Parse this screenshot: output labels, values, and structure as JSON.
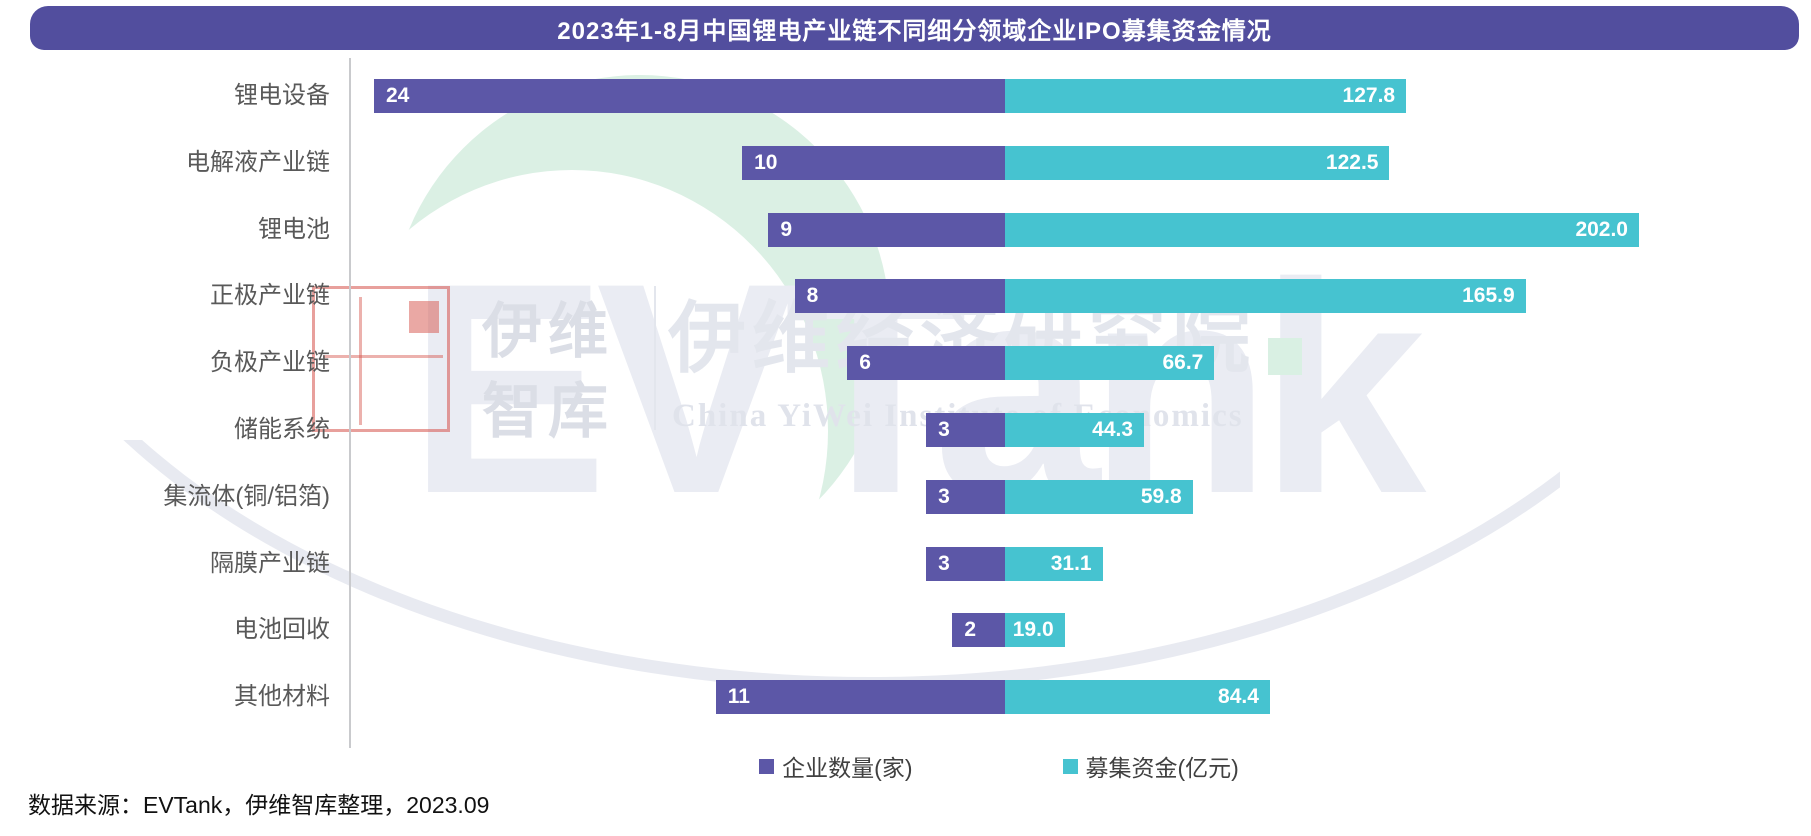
{
  "title": "2023年1-8月中国锂电产业链不同细分领域企业IPO募集资金情况",
  "chart_data": {
    "type": "bar",
    "orientation": "horizontal-diverging-stacked",
    "title": "2023年1-8月中国锂电产业链不同细分领域企业IPO募集资金情况",
    "categories": [
      "锂电设备",
      "电解液产业链",
      "锂电池",
      "正极产业链",
      "负极产业链",
      "储能系统",
      "集流体(铜/铝箔)",
      "隔膜产业链",
      "电池回收",
      "其他材料"
    ],
    "series": [
      {
        "name": "企业数量(家)",
        "color": "#5C57A7",
        "axis_max": 24,
        "values": [
          24,
          10,
          9,
          8,
          6,
          3,
          3,
          3,
          2,
          11
        ]
      },
      {
        "name": "募集资金(亿元)",
        "color": "#46C3D0",
        "axis_max": 202.0,
        "values": [
          127.8,
          122.5,
          202.0,
          165.9,
          66.7,
          44.3,
          59.8,
          31.1,
          19.0,
          84.4
        ]
      }
    ],
    "value_label_format": {
      "companies": "integer",
      "funds": "one_decimal"
    },
    "legend_position": "bottom",
    "grid": false
  },
  "legend": {
    "companies_label": "企业数量(家)",
    "funds_label": "募集资金(亿元)"
  },
  "source_note": "数据来源：EVTank，伊维智库整理，2023.09",
  "watermark": {
    "evtank": "EVTank",
    "cn_name": "伊维经济研究院",
    "en_name": "China YiWei Institute of Economics",
    "yiwei": "伊维",
    "zhiku": "智库"
  },
  "colors": {
    "title_bar": "#524E9E",
    "companies_bar": "#5C57A7",
    "funds_bar": "#46C3D0",
    "label_text": "#595959",
    "watermark_green": "#DBF0E4",
    "watermark_gray": "#EAECF3",
    "seal_red": "#D5524A"
  }
}
